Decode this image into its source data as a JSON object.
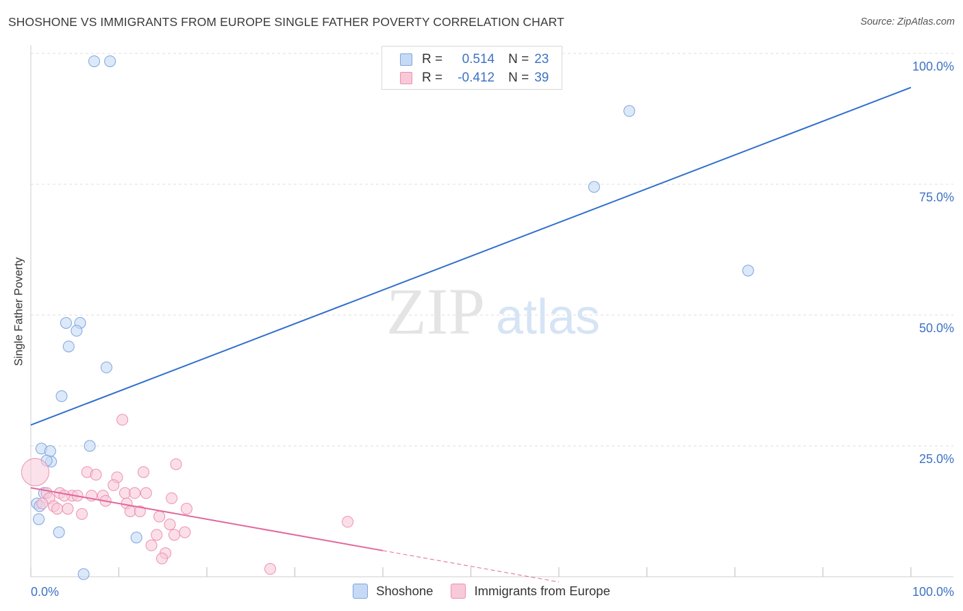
{
  "title": "SHOSHONE VS IMMIGRANTS FROM EUROPE SINGLE FATHER POVERTY CORRELATION CHART",
  "source": "Source: ZipAtlas.com",
  "watermark": {
    "zip": "ZIP",
    "atlas": "atlas"
  },
  "legend": {
    "rows": [
      {
        "r_label": "R =",
        "r_value": "0.514",
        "n_label": "N =",
        "n_value": "23",
        "color": "#b7cff2",
        "border": "#7aa3df"
      },
      {
        "r_label": "R =",
        "r_value": "-0.412",
        "n_label": "N =",
        "n_value": "39",
        "color": "#f8c6d6",
        "border": "#ec8fb0"
      }
    ]
  },
  "chart_data": {
    "type": "scatter",
    "xlabel": "",
    "ylabel": "Single Father Poverty",
    "xlim": [
      0,
      100
    ],
    "ylim": [
      0,
      100
    ],
    "x_tick_labels": [
      "0.0%",
      "100.0%"
    ],
    "y_tick_labels": [
      "25.0%",
      "50.0%",
      "75.0%",
      "100.0%"
    ],
    "y_ticks": [
      25,
      50,
      75,
      100
    ],
    "grid": "horizontal dashed",
    "series": [
      {
        "name": "Shoshone",
        "color": "#7aa3df",
        "fill": "#c7daf5",
        "line_color": "#2f6fcc",
        "trend": {
          "x0": 0,
          "y0": 29.0,
          "x1": 100,
          "y1": 93.5
        },
        "points": [
          {
            "x": 7.2,
            "y": 98.5
          },
          {
            "x": 9.0,
            "y": 98.5
          },
          {
            "x": 68.0,
            "y": 89.0
          },
          {
            "x": 64.0,
            "y": 74.5
          },
          {
            "x": 81.5,
            "y": 58.5
          },
          {
            "x": 4.0,
            "y": 48.5
          },
          {
            "x": 5.6,
            "y": 48.5
          },
          {
            "x": 5.2,
            "y": 47.0
          },
          {
            "x": 4.3,
            "y": 44.0
          },
          {
            "x": 8.6,
            "y": 40.0
          },
          {
            "x": 3.5,
            "y": 34.5
          },
          {
            "x": 6.7,
            "y": 25.0
          },
          {
            "x": 1.2,
            "y": 24.5
          },
          {
            "x": 2.2,
            "y": 24.0
          },
          {
            "x": 2.3,
            "y": 22.0
          },
          {
            "x": 1.8,
            "y": 22.2
          },
          {
            "x": 1.5,
            "y": 16.0
          },
          {
            "x": 0.7,
            "y": 14.0
          },
          {
            "x": 1.0,
            "y": 13.5
          },
          {
            "x": 0.9,
            "y": 11.0
          },
          {
            "x": 3.2,
            "y": 8.5
          },
          {
            "x": 12.0,
            "y": 7.5
          },
          {
            "x": 6.0,
            "y": 0.5
          }
        ]
      },
      {
        "name": "Immigrants from Europe",
        "color": "#ec8fb0",
        "fill": "#f8c9d8",
        "line_color": "#e2679a",
        "trend": {
          "x0": 0,
          "y0": 17.0,
          "x1": 40,
          "y1": 5.0
        },
        "trend_dashed": {
          "x0": 40,
          "y0": 5.0,
          "x1": 60,
          "y1": -1.0
        },
        "points": [
          {
            "x": 0.5,
            "y": 20.0,
            "big": true
          },
          {
            "x": 10.4,
            "y": 30.0
          },
          {
            "x": 16.5,
            "y": 21.5
          },
          {
            "x": 6.4,
            "y": 20.0
          },
          {
            "x": 12.8,
            "y": 20.0
          },
          {
            "x": 7.4,
            "y": 19.5
          },
          {
            "x": 9.8,
            "y": 19.0
          },
          {
            "x": 9.4,
            "y": 17.5
          },
          {
            "x": 1.8,
            "y": 16.0
          },
          {
            "x": 3.3,
            "y": 16.0
          },
          {
            "x": 4.7,
            "y": 15.5
          },
          {
            "x": 5.3,
            "y": 15.5
          },
          {
            "x": 6.9,
            "y": 15.5
          },
          {
            "x": 8.2,
            "y": 15.5
          },
          {
            "x": 10.7,
            "y": 16.0
          },
          {
            "x": 11.8,
            "y": 16.0
          },
          {
            "x": 13.1,
            "y": 16.0
          },
          {
            "x": 16.0,
            "y": 15.0
          },
          {
            "x": 2.1,
            "y": 15.0
          },
          {
            "x": 3.8,
            "y": 15.5
          },
          {
            "x": 8.5,
            "y": 14.5
          },
          {
            "x": 10.9,
            "y": 14.0
          },
          {
            "x": 1.3,
            "y": 14.0
          },
          {
            "x": 2.6,
            "y": 13.5
          },
          {
            "x": 3.0,
            "y": 13.0
          },
          {
            "x": 4.2,
            "y": 13.0
          },
          {
            "x": 5.8,
            "y": 12.0
          },
          {
            "x": 11.3,
            "y": 12.5
          },
          {
            "x": 12.4,
            "y": 12.5
          },
          {
            "x": 14.6,
            "y": 11.5
          },
          {
            "x": 17.7,
            "y": 13.0
          },
          {
            "x": 36.0,
            "y": 10.5
          },
          {
            "x": 15.8,
            "y": 10.0
          },
          {
            "x": 14.3,
            "y": 8.0
          },
          {
            "x": 16.3,
            "y": 8.0
          },
          {
            "x": 17.5,
            "y": 8.5
          },
          {
            "x": 13.7,
            "y": 6.0
          },
          {
            "x": 15.3,
            "y": 4.5
          },
          {
            "x": 14.9,
            "y": 3.5
          },
          {
            "x": 27.2,
            "y": 1.5
          }
        ]
      }
    ]
  }
}
